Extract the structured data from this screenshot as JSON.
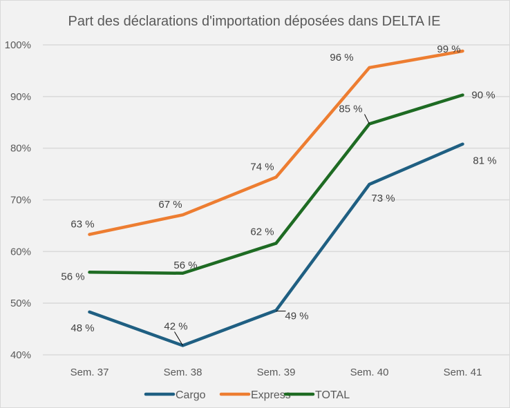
{
  "chart_data": {
    "type": "line",
    "title": "Part des déclarations d'importation déposées dans DELTA IE",
    "xlabel": "",
    "ylabel": "",
    "categories": [
      "Sem. 37",
      "Sem. 38",
      "Sem. 39",
      "Sem. 40",
      "Sem. 41"
    ],
    "ylim": [
      40,
      100
    ],
    "yticks": [
      40,
      50,
      60,
      70,
      80,
      90,
      100
    ],
    "ytick_labels": [
      "40%",
      "50%",
      "60%",
      "70%",
      "80%",
      "90%",
      "100%"
    ],
    "grid": true,
    "legend_position": "bottom",
    "series": [
      {
        "name": "Cargo",
        "color": "#1f5f82",
        "values": [
          48.3,
          41.8,
          48.6,
          73.0,
          80.8
        ],
        "labels": [
          "48 %",
          "42 %",
          "49 %",
          "73 %",
          "81 %"
        ]
      },
      {
        "name": "Express",
        "color": "#ed7d31",
        "values": [
          63.3,
          67.1,
          74.4,
          95.6,
          98.8
        ],
        "labels": [
          "63 %",
          "67 %",
          "74 %",
          "96 %",
          "99 %"
        ]
      },
      {
        "name": "TOTAL",
        "color": "#1e6b23",
        "values": [
          56.0,
          55.8,
          61.6,
          84.7,
          90.3
        ],
        "labels": [
          "56 %",
          "56 %",
          "62 %",
          "85 %",
          "90 %"
        ]
      }
    ]
  }
}
